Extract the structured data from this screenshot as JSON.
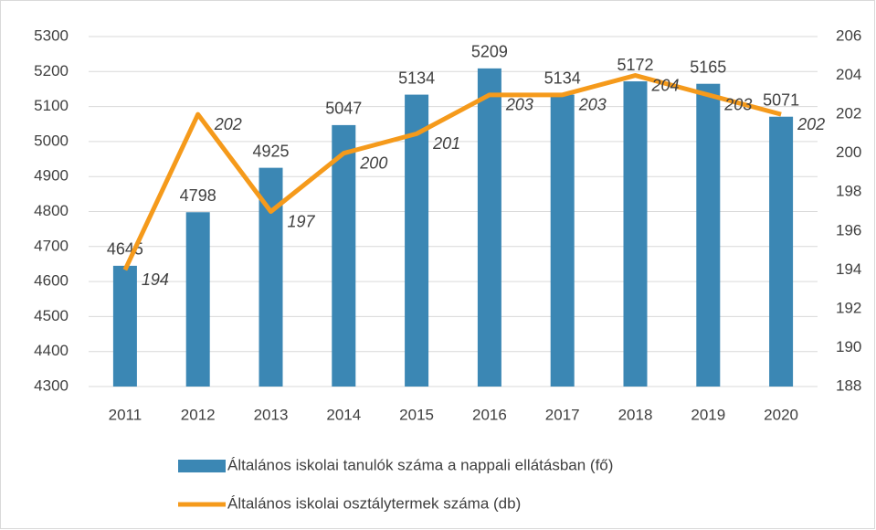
{
  "chart_data": {
    "type": "combo",
    "categories": [
      "2011",
      "2012",
      "2013",
      "2014",
      "2015",
      "2016",
      "2017",
      "2018",
      "2019",
      "2020"
    ],
    "series": [
      {
        "name": "Általános iskolai tanulók száma a nappali ellátásban (fő)",
        "type": "bar",
        "color": "#3b87b4",
        "values": [
          4645,
          4798,
          4925,
          5047,
          5134,
          5209,
          5134,
          5172,
          5165,
          5071
        ]
      },
      {
        "name": "Általános iskolai osztálytermek száma (db)",
        "type": "line",
        "axis": "y2",
        "color": "#f59a1b",
        "values": [
          194,
          202,
          197,
          200,
          201,
          203,
          203,
          204,
          203,
          202
        ]
      }
    ],
    "ylim": [
      4300,
      5300
    ],
    "yticks": [
      4300,
      4400,
      4500,
      4600,
      4700,
      4800,
      4900,
      5000,
      5100,
      5200,
      5300
    ],
    "y2lim": [
      188,
      206
    ],
    "y2ticks": [
      188,
      190,
      192,
      194,
      196,
      198,
      200,
      202,
      204,
      206
    ],
    "grid": true,
    "legend": "bottom"
  }
}
